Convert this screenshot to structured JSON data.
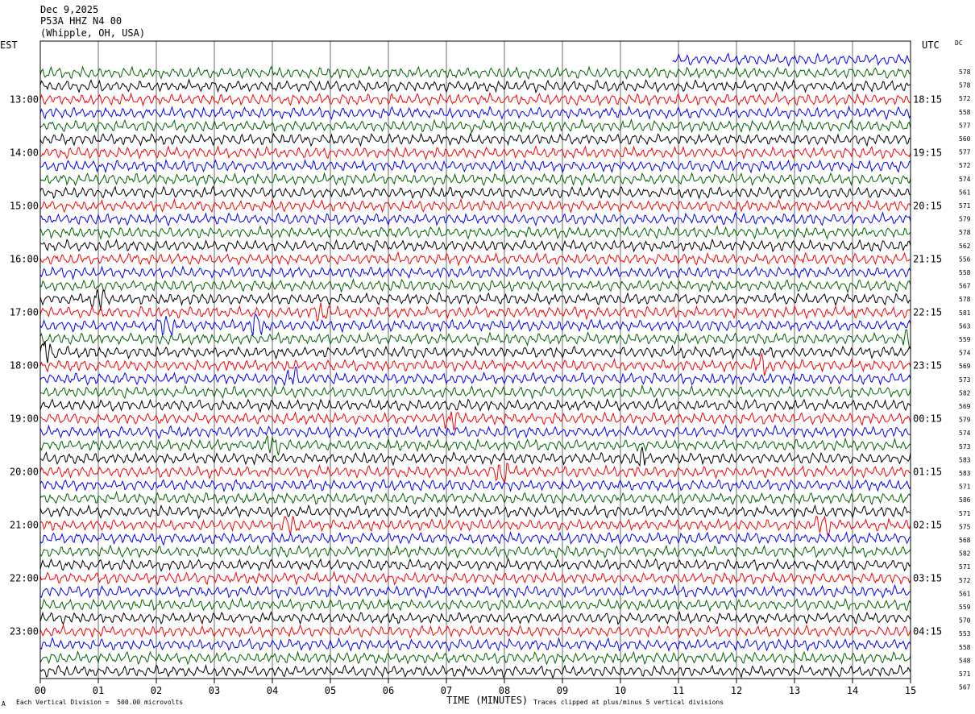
{
  "header": {
    "date": "Dec 9,2025",
    "station": "P53A HHZ N4 00",
    "location": "(Whipple, OH, USA)",
    "left_timezone": "EST",
    "right_timezone": "UTC",
    "dc_label": "DC"
  },
  "footer": {
    "scale_note": "Each Vertical Division =  500.00 microvolts",
    "clip_note": "Traces clipped at plus/minus 5 vertical divisions",
    "corner_mark": "A"
  },
  "chart_data": {
    "type": "line",
    "title": "",
    "xlabel": "TIME (MINUTES)",
    "x_ticks": [
      "00",
      "01",
      "02",
      "03",
      "04",
      "05",
      "06",
      "07",
      "08",
      "09",
      "10",
      "11",
      "12",
      "13",
      "14",
      "15"
    ],
    "xlim": [
      0,
      15
    ],
    "grid": true,
    "trace_colors": [
      "#0000ff",
      "#006400",
      "#000000",
      "#ff0000"
    ],
    "first_trace_start_minute": 10.9,
    "left_hour_labels": [
      "13:00",
      "14:00",
      "15:00",
      "16:00",
      "17:00",
      "18:00",
      "19:00",
      "20:00",
      "21:00",
      "22:00",
      "23:00"
    ],
    "right_hour_labels": [
      "18:15",
      "19:15",
      "20:15",
      "21:15",
      "22:15",
      "23:15",
      "00:15",
      "01:15",
      "02:15",
      "03:15",
      "04:15"
    ],
    "dc_offsets": [
      "578",
      "578",
      "572",
      "558",
      "577",
      "560",
      "577",
      "572",
      "574",
      "561",
      "571",
      "579",
      "578",
      "562",
      "556",
      "558",
      "567",
      "578",
      "581",
      "563",
      "559",
      "574",
      "569",
      "573",
      "582",
      "569",
      "579",
      "574",
      "573",
      "583",
      "583",
      "571",
      "586",
      "571",
      "575",
      "568",
      "582",
      "571",
      "572",
      "561",
      "559",
      "570",
      "553",
      "558",
      "548",
      "571",
      "567"
    ],
    "events": [
      {
        "trace": 18,
        "minute": 1.0
      },
      {
        "trace": 19,
        "minute": 4.85
      },
      {
        "trace": 20,
        "minute": 2.15
      },
      {
        "trace": 20,
        "minute": 3.7
      },
      {
        "trace": 21,
        "minute": 15.0
      },
      {
        "trace": 22,
        "minute": 0.1
      },
      {
        "trace": 23,
        "minute": 12.45
      },
      {
        "trace": 24,
        "minute": 4.35
      },
      {
        "trace": 27,
        "minute": 7.1
      },
      {
        "trace": 29,
        "minute": 4.0
      },
      {
        "trace": 30,
        "minute": 10.35
      },
      {
        "trace": 31,
        "minute": 7.95
      },
      {
        "trace": 35,
        "minute": 4.3
      },
      {
        "trace": 35,
        "minute": 13.5
      }
    ]
  }
}
